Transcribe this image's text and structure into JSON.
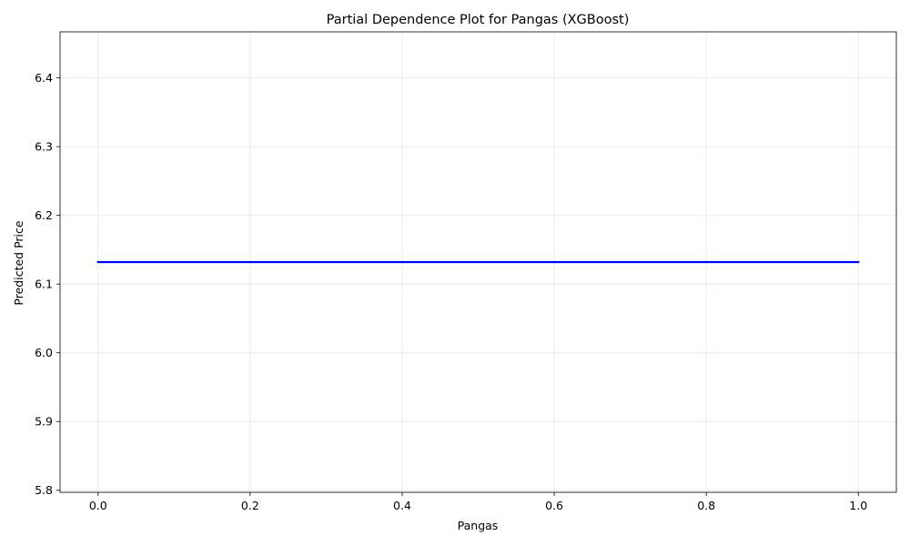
{
  "chart_data": {
    "type": "line",
    "title": "Partial Dependence Plot for Pangas (XGBoost)",
    "xlabel": "Pangas",
    "ylabel": "Predicted Price",
    "xlim": [
      -0.05,
      1.05
    ],
    "ylim": [
      5.797,
      6.467
    ],
    "x_ticks": [
      0.0,
      0.2,
      0.4,
      0.6,
      0.8,
      1.0
    ],
    "x_tick_labels": [
      "0.0",
      "0.2",
      "0.4",
      "0.6",
      "0.8",
      "1.0"
    ],
    "y_ticks": [
      5.8,
      5.9,
      6.0,
      6.1,
      6.2,
      6.3,
      6.4
    ],
    "y_tick_labels": [
      "5.8",
      "5.9",
      "6.0",
      "6.1",
      "6.2",
      "6.3",
      "6.4"
    ],
    "grid": true,
    "series": [
      {
        "color": "#0000ff",
        "x": [
          0.0,
          1.0
        ],
        "y": [
          6.132,
          6.132
        ]
      }
    ]
  }
}
